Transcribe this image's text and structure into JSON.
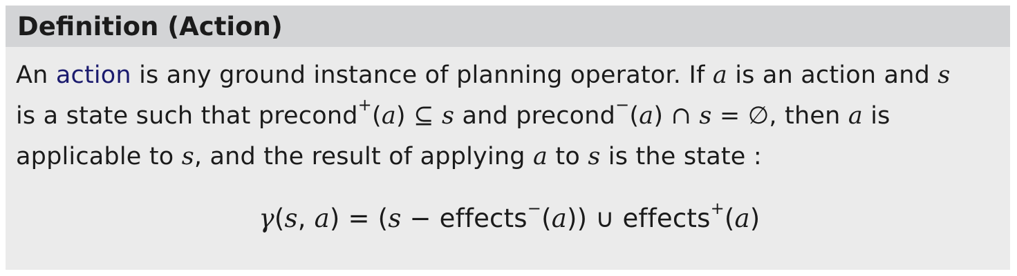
{
  "definition": {
    "title": "Definition (Action)",
    "body": {
      "t1": "An ",
      "term": "action",
      "t2": " is any ground instance of planning operator. If ",
      "a1": "a",
      "t3": " is an action and ",
      "s1": "s",
      "t4": "is a state such that precond",
      "plus1": "+",
      "pa1_open": "(",
      "pa1": "a",
      "pa1_close": ")",
      "subseteq": " ⊆ ",
      "s2": "s",
      "t5": " and precond",
      "minus1": "−",
      "pa2_open": "(",
      "pa2": "a",
      "pa2_close": ")",
      "cap": " ∩ ",
      "s3": "s",
      "eq_empty": " = ∅",
      "t6": ", then ",
      "a2": "a",
      "t7": " is",
      "t8": "applicable to ",
      "s4": "s",
      "t9": ", and the result of applying ",
      "a3": "a",
      "t10": " to ",
      "s5": "s",
      "t11": " is the state :"
    },
    "formula": {
      "gamma": "γ",
      "open": "(",
      "s": "s",
      "comma": ", ",
      "a": "a",
      "close_eq": ") = (",
      "s2": "s",
      "minus": " − ",
      "effects1": "effects",
      "minus_sup": "−",
      "open2": "(",
      "a2": "a",
      "close2": ")) ∪ ",
      "effects2": "effects",
      "plus_sup": "+",
      "open3": "(",
      "a3": "a",
      "close3": ")"
    }
  }
}
